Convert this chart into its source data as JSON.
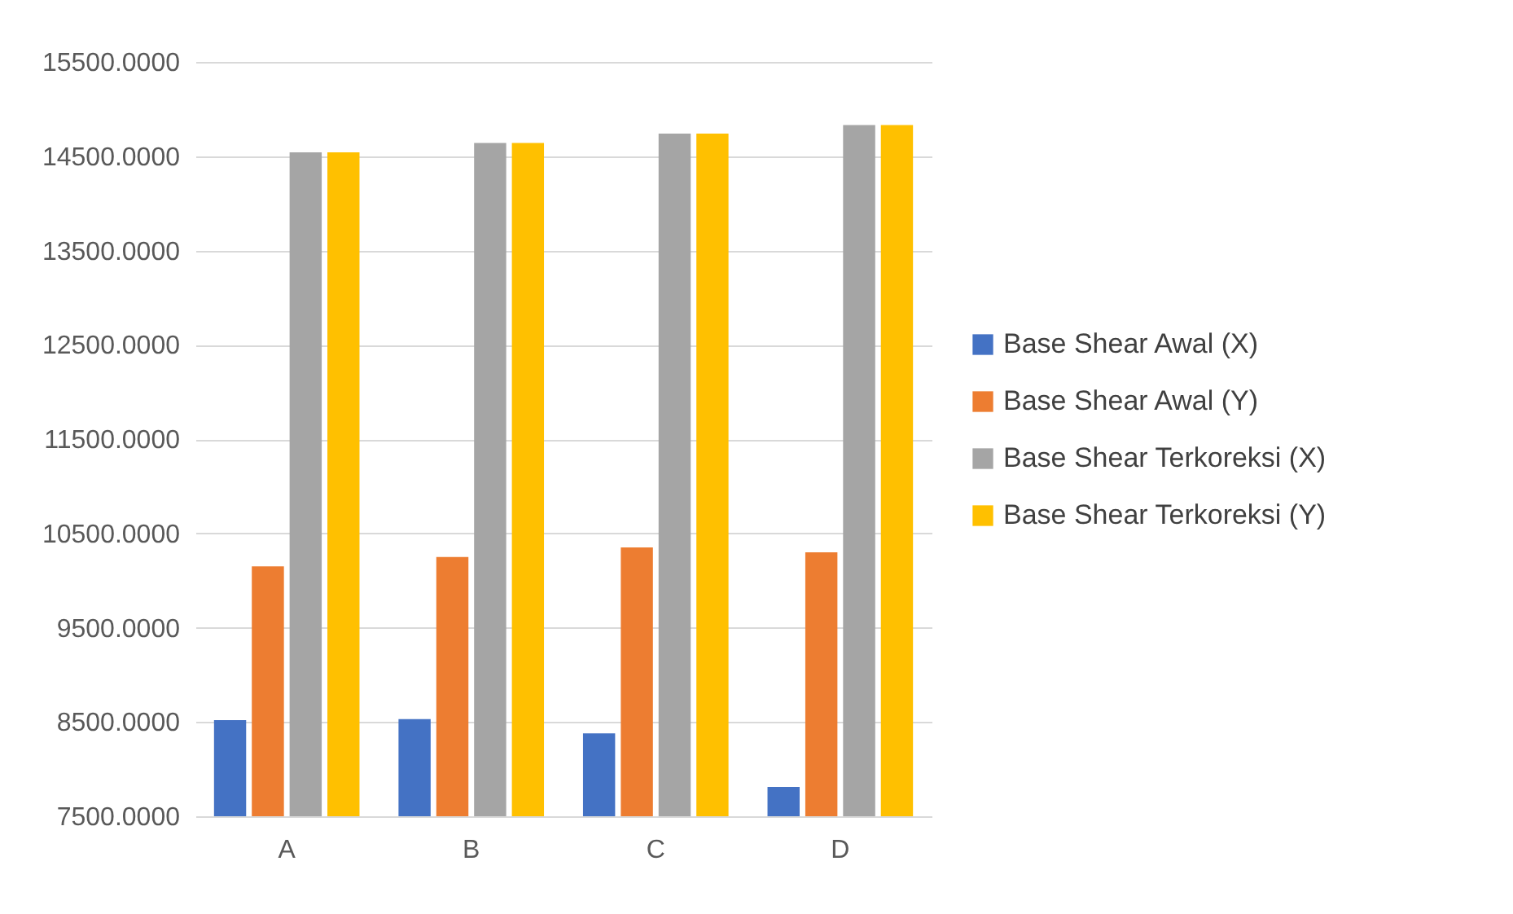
{
  "chart_data": {
    "type": "bar",
    "categories": [
      "A",
      "B",
      "C",
      "D"
    ],
    "series": [
      {
        "name": "Base Shear Awal (X)",
        "color": "#4472c4",
        "values": [
          8520,
          8530,
          8380,
          7810
        ]
      },
      {
        "name": "Base Shear Awal (Y)",
        "color": "#ed7d31",
        "values": [
          10150,
          10250,
          10350,
          10300
        ]
      },
      {
        "name": "Base Shear Terkoreksi (X)",
        "color": "#a5a5a5",
        "values": [
          14540,
          14640,
          14740,
          14830
        ]
      },
      {
        "name": "Base Shear Terkoreksi (Y)",
        "color": "#ffc000",
        "values": [
          14540,
          14640,
          14740,
          14830
        ]
      }
    ],
    "ylim": [
      7500,
      15500
    ],
    "yticks": [
      {
        "value": 7500,
        "label": "7500.0000"
      },
      {
        "value": 8500,
        "label": "8500.0000"
      },
      {
        "value": 9500,
        "label": "9500.0000"
      },
      {
        "value": 10500,
        "label": "10500.0000"
      },
      {
        "value": 11500,
        "label": "11500.0000"
      },
      {
        "value": 12500,
        "label": "12500.0000"
      },
      {
        "value": 13500,
        "label": "13500.0000"
      },
      {
        "value": 14500,
        "label": "14500.0000"
      },
      {
        "value": 15500,
        "label": "15500.0000"
      }
    ],
    "grid": "y",
    "legend": "right"
  }
}
